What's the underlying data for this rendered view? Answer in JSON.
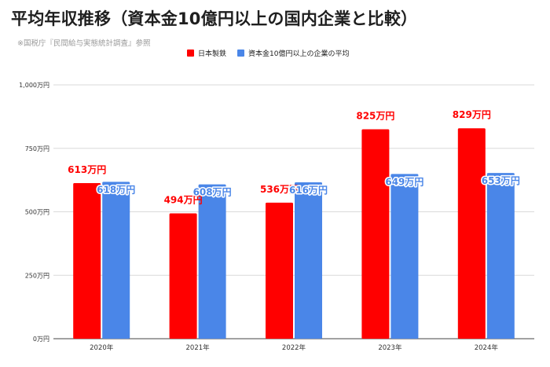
{
  "title": "平均年収推移（資本金10億円以上の国内企業と比較）",
  "source_note": "※国税庁『民間給与実態統計調査』参照",
  "chart_data": {
    "type": "bar",
    "categories": [
      "2020年",
      "2021年",
      "2022年",
      "2023年",
      "2024年"
    ],
    "series": [
      {
        "name": "日本製鉄",
        "values": [
          613,
          494,
          536,
          825,
          829
        ],
        "color": "#ff0000",
        "labels": [
          "613万円",
          "494万円",
          "536万円",
          "825万円",
          "829万円"
        ]
      },
      {
        "name": "資本金10億円以上の企業の平均",
        "values": [
          618,
          608,
          616,
          649,
          653
        ],
        "color": "#4a86e8",
        "labels": [
          "618万円",
          "608万円",
          "616万円",
          "649万円",
          "653万円"
        ]
      }
    ],
    "y_ticks": [
      0,
      250,
      500,
      750,
      1000
    ],
    "y_tick_labels": [
      "0万円",
      "250万円",
      "500万円",
      "750万円",
      "1,000万円"
    ],
    "ylim": [
      0,
      1000
    ],
    "grid": true,
    "legend_position": "top"
  }
}
